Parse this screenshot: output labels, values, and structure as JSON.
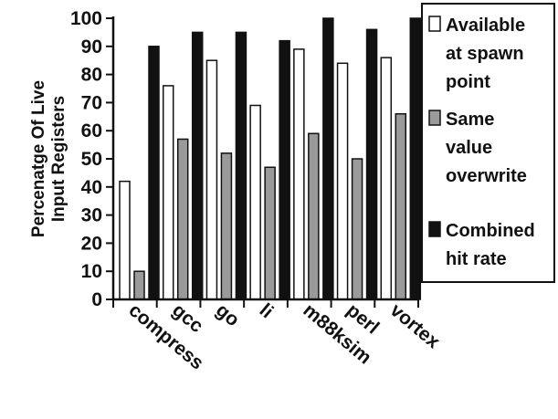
{
  "chart_data": {
    "type": "bar",
    "categories": [
      "compress",
      "gcc",
      "go",
      "li",
      "m88ksim",
      "perl",
      "vortex"
    ],
    "series": [
      {
        "name": "Available at spawn point",
        "values": [
          42,
          76,
          85,
          69,
          89,
          84,
          86
        ],
        "color": "#ffffff"
      },
      {
        "name": "Same value overwrite",
        "values": [
          10,
          57,
          52,
          47,
          59,
          50,
          66
        ],
        "color": "#9a9a9a"
      },
      {
        "name": "Combined hit rate",
        "values": [
          90,
          95,
          95,
          92,
          100,
          96,
          100
        ],
        "color": "#111111"
      }
    ],
    "legend_lines": [
      [
        "Available",
        "at spawn",
        "point"
      ],
      [
        "Same",
        "value",
        "overwrite"
      ],
      [
        "Combined",
        "hit rate"
      ]
    ],
    "ylabel_lines": [
      "Percenatge Of Live",
      "Input Registers"
    ],
    "ylim": [
      0,
      100
    ],
    "yticks": [
      0,
      10,
      20,
      30,
      40,
      50,
      60,
      70,
      80,
      90,
      100
    ],
    "grid": false,
    "legend_position": "right"
  }
}
